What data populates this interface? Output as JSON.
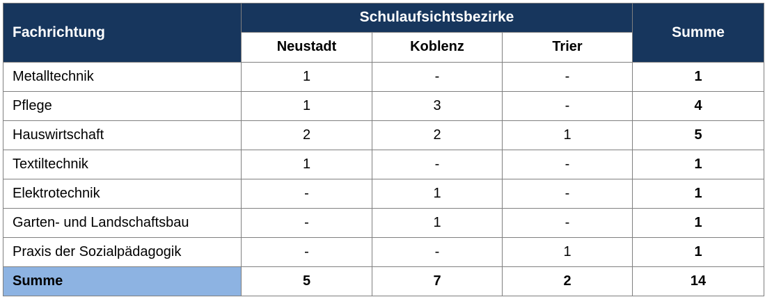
{
  "header": {
    "fachrichtung": "Fachrichtung",
    "group": "Schulaufsichtsbezirke",
    "summe": "Summe",
    "districts": [
      "Neustadt",
      "Koblenz",
      "Trier"
    ]
  },
  "rows": [
    {
      "label": "Metalltechnik",
      "neustadt": "1",
      "koblenz": "-",
      "trier": "-",
      "summe": "1"
    },
    {
      "label": "Pflege",
      "neustadt": "1",
      "koblenz": "3",
      "trier": "-",
      "summe": "4"
    },
    {
      "label": "Hauswirtschaft",
      "neustadt": "2",
      "koblenz": "2",
      "trier": "1",
      "summe": "5"
    },
    {
      "label": "Textiltechnik",
      "neustadt": "1",
      "koblenz": "-",
      "trier": "-",
      "summe": "1"
    },
    {
      "label": "Elektrotechnik",
      "neustadt": "-",
      "koblenz": "1",
      "trier": "-",
      "summe": "1"
    },
    {
      "label": "Garten- und Landschaftsbau",
      "neustadt": "-",
      "koblenz": "1",
      "trier": "-",
      "summe": "1"
    },
    {
      "label": "Praxis der Sozialpädagogik",
      "neustadt": "-",
      "koblenz": "-",
      "trier": "1",
      "summe": "1"
    }
  ],
  "total": {
    "label": "Summe",
    "neustadt": "5",
    "koblenz": "7",
    "trier": "2",
    "summe": "14"
  }
}
